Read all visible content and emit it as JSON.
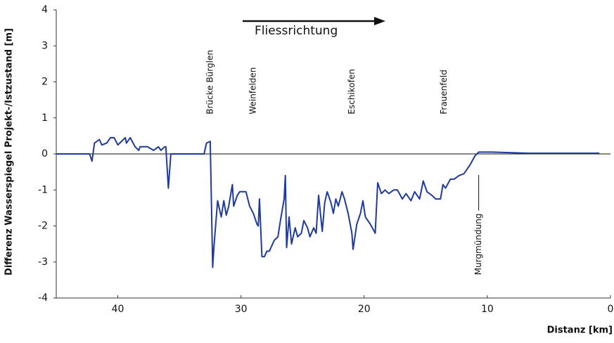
{
  "chart_data": {
    "type": "line",
    "ylabel": "Differenz Wasserspiegel Projekt-/Istzustand [m]",
    "xlabel": "Distanz [km]",
    "flow_label": "Fliessrichtung",
    "xlim": [
      45,
      0
    ],
    "xticks": [
      40,
      30,
      20,
      10,
      0
    ],
    "ylim": [
      -4,
      4
    ],
    "yticks": [
      -4,
      -3,
      -2,
      -1,
      0,
      1,
      2,
      3,
      4
    ],
    "color": "#1f3a9c",
    "annotations": [
      {
        "text": "Brücke Bürglen",
        "x": 32.5,
        "y": 1.1
      },
      {
        "text": "Weinfelden",
        "x": 29,
        "y": 1.1
      },
      {
        "text": "Eschikofen",
        "x": 21,
        "y": 1.1
      },
      {
        "text": "Frauenfeld",
        "x": 13.5,
        "y": 1.1
      },
      {
        "text": "Murgmündung",
        "x": 10.7,
        "y": -1.65
      }
    ],
    "x": [
      45,
      42.3,
      42.1,
      41.9,
      41.5,
      41.3,
      40.9,
      40.6,
      40.3,
      40,
      39.7,
      39.4,
      39.3,
      39,
      38.6,
      38.3,
      38.2,
      37.6,
      37.1,
      36.7,
      36.5,
      36.2,
      36.1,
      35.9,
      35.7,
      33,
      32.8,
      32.5,
      32.3,
      32.2,
      31.9,
      31.6,
      31.4,
      31.2,
      31,
      30.7,
      30.6,
      30.3,
      30.1,
      29.6,
      29.3,
      29,
      28.7,
      28.6,
      28.5,
      28.3,
      28.1,
      27.9,
      27.7,
      27.3,
      27,
      26.8,
      26.5,
      26.4,
      26.3,
      26.1,
      25.9,
      25.6,
      25.4,
      25.1,
      24.9,
      24.6,
      24.4,
      24.1,
      23.9,
      23.7,
      23.4,
      23.2,
      23,
      22.7,
      22.5,
      22.3,
      22.1,
      21.8,
      21.6,
      21.3,
      21,
      20.9,
      20.6,
      20.3,
      20.1,
      19.9,
      19.5,
      19.1,
      18.9,
      18.6,
      18.3,
      18,
      17.6,
      17.3,
      16.9,
      16.6,
      16.2,
      15.9,
      15.5,
      15.2,
      14.9,
      14.5,
      14.2,
      13.8,
      13.6,
      13.4,
      13,
      12.7,
      12.3,
      11.9,
      11.4,
      11,
      10.7,
      9.6,
      6.7,
      3.9,
      0.9
    ],
    "values": [
      0,
      0,
      -0.2,
      0.3,
      0.4,
      0.25,
      0.3,
      0.45,
      0.45,
      0.25,
      0.35,
      0.45,
      0.3,
      0.45,
      0.2,
      0.1,
      0.2,
      0.2,
      0.1,
      0.2,
      0.1,
      0.2,
      0.2,
      -0.95,
      0,
      0,
      0.3,
      0.35,
      -3.15,
      -2.6,
      -1.3,
      -1.75,
      -1.3,
      -1.7,
      -1.45,
      -0.85,
      -1.45,
      -1.15,
      -1.05,
      -1.05,
      -1.45,
      -1.65,
      -1.95,
      -2,
      -1.25,
      -2.85,
      -2.85,
      -2.7,
      -2.7,
      -2.4,
      -2.3,
      -1.85,
      -1.25,
      -0.6,
      -2.6,
      -1.75,
      -2.5,
      -2.05,
      -2.3,
      -2.2,
      -1.85,
      -2.05,
      -2.3,
      -2.05,
      -2.2,
      -1.15,
      -2.15,
      -1.35,
      -1.05,
      -1.35,
      -1.65,
      -1.25,
      -1.45,
      -1.05,
      -1.25,
      -1.65,
      -2.2,
      -2.65,
      -1.95,
      -1.65,
      -1.3,
      -1.75,
      -1.95,
      -2.2,
      -0.8,
      -1.1,
      -1,
      -1.1,
      -1,
      -1,
      -1.25,
      -1.1,
      -1.3,
      -1.05,
      -1.25,
      -0.75,
      -1.05,
      -1.15,
      -1.25,
      -1.25,
      -0.85,
      -0.95,
      -0.7,
      -0.7,
      -0.6,
      -0.55,
      -0.3,
      -0.05,
      0.05,
      0.05,
      0.02,
      0.02,
      0.02
    ]
  }
}
